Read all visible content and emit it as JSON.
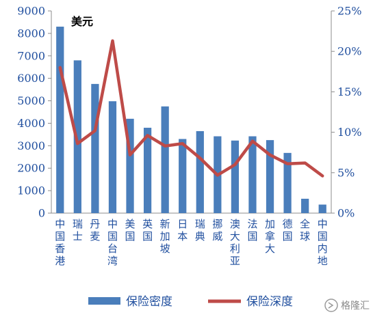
{
  "chart_data": {
    "type": "bar+line",
    "unit_label": "美元",
    "categories": [
      "中国香港",
      "瑞士",
      "丹麦",
      "中国台湾",
      "美国",
      "英国",
      "新加坡",
      "日本",
      "瑞典",
      "挪威",
      "澳大利亚",
      "法国",
      "加拿大",
      "德国",
      "全球",
      "中国内地"
    ],
    "series": [
      {
        "name": "保险密度",
        "type": "bar",
        "axis": "left",
        "values": [
          8300,
          6800,
          5750,
          4980,
          4200,
          3800,
          4750,
          3300,
          3650,
          3420,
          3230,
          3420,
          3250,
          2680,
          640,
          380
        ]
      },
      {
        "name": "保险深度",
        "type": "line",
        "axis": "right",
        "values": [
          0.18,
          0.086,
          0.102,
          0.213,
          0.072,
          0.096,
          0.083,
          0.086,
          0.068,
          0.047,
          0.06,
          0.089,
          0.072,
          0.061,
          0.062,
          0.046
        ]
      }
    ],
    "y_left": {
      "min": 0,
      "max": 9000,
      "ticks": [
        "0",
        "1000",
        "2000",
        "3000",
        "4000",
        "5000",
        "6000",
        "7000",
        "8000",
        "9000"
      ]
    },
    "y_right": {
      "min": 0,
      "max": 0.25,
      "ticks": [
        "0%",
        "5%",
        "10%",
        "15%",
        "20%",
        "25%"
      ]
    },
    "grid": false,
    "legend_position": "bottom",
    "colors": {
      "bar": "#4a7ebb",
      "line": "#be4b48",
      "text": "#1f4e9e",
      "axis": "#8c8c8c"
    }
  },
  "watermark": {
    "text": "格隆汇"
  }
}
